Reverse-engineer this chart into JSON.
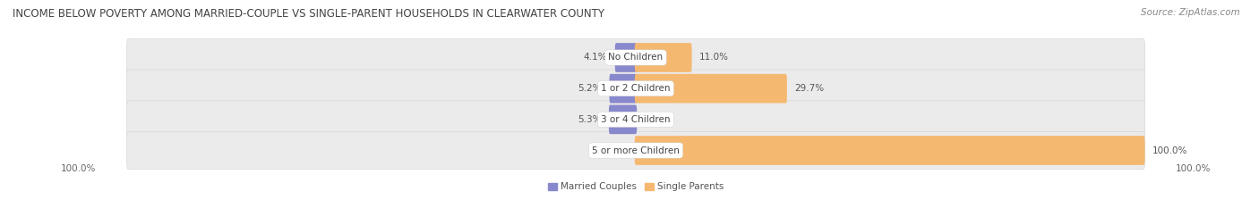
{
  "title": "INCOME BELOW POVERTY AMONG MARRIED-COUPLE VS SINGLE-PARENT HOUSEHOLDS IN CLEARWATER COUNTY",
  "source": "Source: ZipAtlas.com",
  "categories": [
    "No Children",
    "1 or 2 Children",
    "3 or 4 Children",
    "5 or more Children"
  ],
  "married_couples": [
    4.1,
    5.2,
    5.3,
    0.0
  ],
  "single_parents": [
    11.0,
    29.7,
    0.0,
    100.0
  ],
  "married_color": "#8888cc",
  "single_color": "#f5b870",
  "married_color_light": "#b8b8e0",
  "single_color_light": "#fdd9a8",
  "bar_bg_color": "#ebebeb",
  "title_fontsize": 8.5,
  "source_fontsize": 7.5,
  "label_fontsize": 7.5,
  "category_fontsize": 7.5,
  "axis_label_fontsize": 7.5,
  "max_value": 100.0,
  "legend_labels": [
    "Married Couples",
    "Single Parents"
  ],
  "left_axis_label": "100.0%",
  "right_axis_label": "100.0%"
}
